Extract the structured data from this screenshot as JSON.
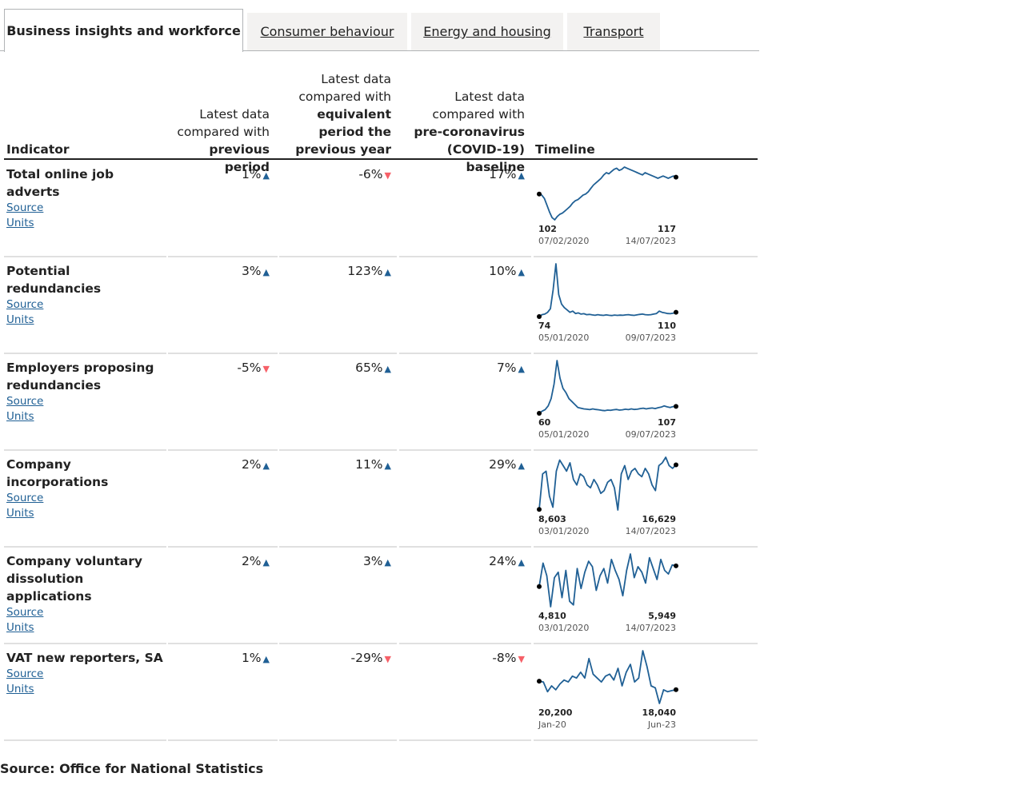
{
  "tabs": [
    {
      "label": "Business insights and workforce",
      "active": true
    },
    {
      "label": "Consumer behaviour",
      "active": false
    },
    {
      "label": "Energy and housing",
      "active": false
    },
    {
      "label": "Transport",
      "active": false
    }
  ],
  "headers": {
    "indicator": "Indicator",
    "prev_period_l1": "Latest data",
    "prev_period_l2": "compared with",
    "prev_period_l3": "previous period",
    "prev_year_l1": "Latest data",
    "prev_year_l2": "compared with",
    "prev_year_l3": "equivalent",
    "prev_year_l4": "period the",
    "prev_year_l5": "previous year",
    "baseline_l1": "Latest data",
    "baseline_l2": "compared with",
    "baseline_l3": "pre-coronavirus",
    "baseline_l4": "(COVID-19) baseline",
    "timeline": "Timeline"
  },
  "links": {
    "source": "Source",
    "units": "Units"
  },
  "colors": {
    "up": "#206095",
    "down": "#f66068",
    "line": "#206095"
  },
  "rows": [
    {
      "name": "Total online job adverts",
      "prev_period": "1%",
      "prev_period_dir": "up",
      "prev_year": "-6%",
      "prev_year_dir": "down",
      "baseline": "17%",
      "baseline_dir": "up",
      "start_value": "102",
      "end_value": "117",
      "start_date": "07/02/2020",
      "end_date": "14/07/2023",
      "series": [
        102,
        101,
        98,
        92,
        86,
        81,
        79,
        82,
        84,
        85,
        87,
        89,
        91,
        94,
        96,
        97,
        99,
        101,
        102,
        104,
        107,
        110,
        112,
        114,
        116,
        119,
        121,
        120,
        122,
        124,
        125,
        123,
        124,
        126,
        125,
        124,
        123,
        122,
        121,
        120,
        119,
        121,
        120,
        119,
        118,
        117,
        116,
        117,
        118,
        117,
        116,
        117,
        118,
        117
      ]
    },
    {
      "name": "Potential redundancies",
      "prev_period": "3%",
      "prev_period_dir": "up",
      "prev_year": "123%",
      "prev_year_dir": "up",
      "baseline": "10%",
      "baseline_dir": "up",
      "start_value": "74",
      "end_value": "110",
      "start_date": "05/01/2020",
      "end_date": "09/07/2023",
      "series": [
        74,
        90,
        95,
        110,
        140,
        300,
        520,
        260,
        180,
        150,
        130,
        110,
        120,
        100,
        105,
        95,
        98,
        90,
        92,
        88,
        85,
        90,
        86,
        84,
        88,
        85,
        83,
        87,
        84,
        86,
        85,
        88,
        90,
        86,
        84,
        88,
        92,
        95,
        90,
        88,
        90,
        95,
        100,
        120,
        110,
        105,
        100,
        98,
        103,
        110
      ]
    },
    {
      "name": "Employers proposing redundancies",
      "prev_period": "-5%",
      "prev_period_dir": "down",
      "prev_year": "65%",
      "prev_year_dir": "up",
      "baseline": "7%",
      "baseline_dir": "up",
      "start_value": "60",
      "end_value": "107",
      "start_date": "05/01/2020",
      "end_date": "09/07/2023",
      "series": [
        60,
        75,
        85,
        110,
        160,
        260,
        420,
        300,
        230,
        200,
        160,
        140,
        120,
        100,
        95,
        90,
        88,
        85,
        90,
        86,
        84,
        80,
        78,
        82,
        80,
        84,
        86,
        82,
        84,
        88,
        85,
        90,
        86,
        88,
        92,
        95,
        90,
        94,
        96,
        92,
        98,
        102,
        110,
        104,
        100,
        106,
        107
      ]
    },
    {
      "name": "Company incorporations",
      "prev_period": "2%",
      "prev_period_dir": "up",
      "prev_year": "11%",
      "prev_year_dir": "up",
      "baseline": "29%",
      "baseline_dir": "up",
      "start_value": "8,603",
      "end_value": "16,629",
      "start_date": "03/01/2020",
      "end_date": "14/07/2023",
      "series": [
        8603,
        15000,
        15500,
        11000,
        9000,
        15500,
        17500,
        16500,
        15500,
        17000,
        14000,
        13000,
        15000,
        14500,
        13000,
        12500,
        14000,
        13000,
        11500,
        12000,
        13500,
        14000,
        12500,
        8500,
        15000,
        16500,
        14000,
        15500,
        16000,
        15000,
        14500,
        16000,
        15000,
        13000,
        12000,
        16500,
        17000,
        18000,
        16500,
        16000,
        16629
      ]
    },
    {
      "name": "Company voluntary dissolution applications",
      "prev_period": "2%",
      "prev_period_dir": "up",
      "prev_year": "3%",
      "prev_year_dir": "up",
      "baseline": "24%",
      "baseline_dir": "up",
      "start_value": "4,810",
      "end_value": "5,949",
      "start_date": "03/01/2020",
      "end_date": "14/07/2023",
      "series": [
        4810,
        6100,
        5400,
        3700,
        5300,
        5600,
        4200,
        5700,
        4000,
        3800,
        5800,
        4700,
        5600,
        6200,
        5900,
        4600,
        5400,
        5800,
        5000,
        6300,
        5700,
        5200,
        4300,
        5700,
        6600,
        5300,
        5900,
        5600,
        5000,
        6400,
        5800,
        5200,
        6300,
        5700,
        5500,
        6000,
        5949
      ]
    },
    {
      "name": "VAT new reporters, SA",
      "prev_period": "1%",
      "prev_period_dir": "up",
      "prev_year": "-29%",
      "prev_year_dir": "down",
      "baseline": "-8%",
      "baseline_dir": "down",
      "start_value": "20,200",
      "end_value": "18,040",
      "start_date": "Jan-20",
      "end_date": "Jun-23",
      "series": [
        20200,
        20000,
        17500,
        19000,
        18000,
        19500,
        20500,
        20000,
        21500,
        21000,
        22500,
        21000,
        26000,
        22000,
        21000,
        20000,
        21500,
        22000,
        20500,
        23500,
        19000,
        22500,
        24500,
        20000,
        21000,
        28000,
        24000,
        19000,
        18500,
        14500,
        18000,
        17500,
        17800,
        18040
      ]
    }
  ],
  "footer": {
    "source": "Source: Office for National Statistics"
  }
}
